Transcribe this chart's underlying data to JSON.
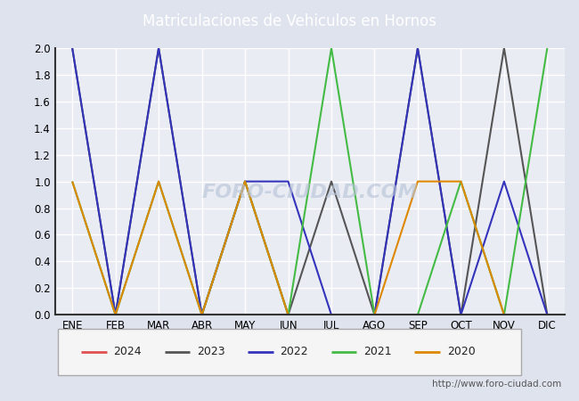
{
  "title": "Matriculaciones de Vehiculos en Hornos",
  "title_bg_color": "#4a6fa5",
  "title_text_color": "#ffffff",
  "months": [
    "ENE",
    "FEB",
    "MAR",
    "ABR",
    "MAY",
    "JUN",
    "JUL",
    "AGO",
    "SEP",
    "OCT",
    "NOV",
    "DIC"
  ],
  "ylim": [
    0.0,
    2.0
  ],
  "yticks": [
    0.0,
    0.2,
    0.4,
    0.6,
    0.8,
    1.0,
    1.2,
    1.4,
    1.6,
    1.8,
    2.0
  ],
  "series": {
    "2024": {
      "color": "#e05050",
      "data": [
        0,
        0,
        0,
        0,
        0,
        null,
        null,
        null,
        null,
        null,
        null,
        null
      ]
    },
    "2023": {
      "color": "#555555",
      "data": [
        2,
        0,
        2,
        0,
        1,
        0,
        1,
        0,
        2,
        0,
        2,
        0
      ]
    },
    "2022": {
      "color": "#3333bb",
      "data": [
        2,
        0,
        2,
        0,
        1,
        1,
        0,
        0,
        2,
        0,
        1,
        0
      ]
    },
    "2021": {
      "color": "#44bb44",
      "data": [
        1,
        0,
        1,
        0,
        1,
        0,
        2,
        0,
        0,
        1,
        0,
        2
      ]
    },
    "2020": {
      "color": "#dd8800",
      "data": [
        1,
        0,
        1,
        0,
        1,
        0,
        0,
        0,
        1,
        1,
        0,
        0
      ]
    }
  },
  "legend_order": [
    "2024",
    "2023",
    "2022",
    "2021",
    "2020"
  ],
  "watermark": "FORO-CIUDAD.COM",
  "url": "http://www.foro-ciudad.com",
  "bg_color": "#dfe3ee",
  "plot_bg_color": "#eaecf4",
  "grid_color": "#ffffff"
}
